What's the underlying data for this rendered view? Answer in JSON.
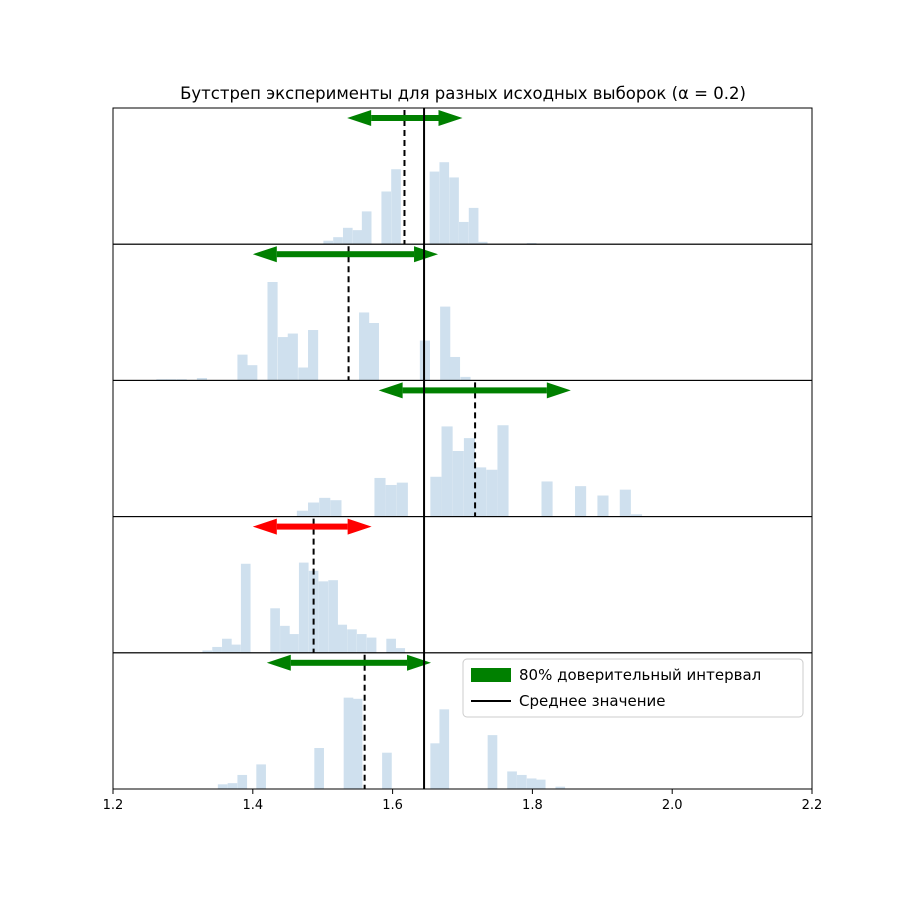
{
  "chart_data": {
    "type": "bar",
    "title": "Бутстреп эксперименты для разных исходных выборок (α = 0.2)",
    "xlim": [
      1.2,
      2.2
    ],
    "x_ticks": [
      1.2,
      1.4,
      1.6,
      1.8,
      2.0,
      2.2
    ],
    "x_tick_labels": [
      "1.2",
      "1.4",
      "1.6",
      "1.8",
      "2.0",
      "2.2"
    ],
    "grid": false,
    "true_mean": 1.645,
    "legend": {
      "position": "lower-right",
      "entries": [
        {
          "label": "80% доверительный интервал",
          "color": "#008000"
        },
        {
          "label": "Среднее значение",
          "color": "#000000"
        }
      ]
    },
    "colors": {
      "hist": "#cfe0ee",
      "interval_ok": "#008000",
      "interval_miss": "#ff0000",
      "true_mean_line": "#000000",
      "sample_mean_line": "#000000"
    },
    "panels": [
      {
        "sample_mean": 1.617,
        "interval": [
          1.535,
          1.7
        ],
        "covers_true_mean": true,
        "hist": {
          "bin_width": 0.0138,
          "ymax": 100,
          "x": [
            1.335,
            1.349,
            1.363,
            1.377,
            1.39,
            1.404,
            1.418,
            1.432,
            1.446,
            1.46,
            1.473,
            1.487,
            1.501,
            1.515,
            1.529,
            1.543,
            1.556,
            1.57,
            1.584,
            1.598,
            1.612,
            1.626,
            1.639,
            1.653,
            1.667,
            1.681,
            1.695,
            1.709,
            1.722,
            1.736,
            1.75,
            1.764,
            1.778,
            1.792,
            1.805
          ],
          "values": [
            0,
            0,
            0,
            0,
            0,
            0,
            0,
            0,
            0,
            0,
            0,
            0,
            3,
            6,
            14,
            12,
            28,
            0,
            45,
            64,
            0,
            0,
            0,
            62,
            70,
            57,
            19,
            31,
            2,
            0,
            0,
            0,
            0,
            1,
            0
          ]
        }
      },
      {
        "sample_mean": 1.537,
        "interval": [
          1.4,
          1.665
        ],
        "covers_true_mean": true,
        "hist": {
          "bin_width": 0.0145,
          "ymax": 100,
          "x": [
            1.262,
            1.276,
            1.291,
            1.305,
            1.32,
            1.334,
            1.349,
            1.363,
            1.378,
            1.392,
            1.407,
            1.421,
            1.436,
            1.45,
            1.465,
            1.479,
            1.494,
            1.508,
            1.523,
            1.537,
            1.552,
            1.566,
            1.581,
            1.595,
            1.61,
            1.624,
            1.639,
            1.653,
            1.668,
            1.682,
            1.697,
            1.711,
            1.726
          ],
          "values": [
            1,
            1,
            1,
            0,
            2,
            0,
            0,
            0,
            22,
            13,
            0,
            84,
            37,
            40,
            11,
            43,
            0,
            0,
            0,
            0,
            58,
            49,
            0,
            0,
            0,
            0,
            34,
            0,
            63,
            20,
            3,
            0,
            0
          ]
        }
      },
      {
        "sample_mean": 1.718,
        "interval": [
          1.58,
          1.855
        ],
        "covers_true_mean": true,
        "hist": {
          "bin_width": 0.0159,
          "ymax": 100,
          "x": [
            1.415,
            1.431,
            1.447,
            1.463,
            1.479,
            1.495,
            1.511,
            1.527,
            1.543,
            1.559,
            1.574,
            1.59,
            1.606,
            1.622,
            1.638,
            1.654,
            1.67,
            1.686,
            1.702,
            1.718,
            1.734,
            1.75,
            1.765,
            1.781,
            1.797,
            1.813,
            1.829,
            1.845,
            1.861,
            1.877,
            1.893,
            1.909,
            1.925,
            1.941,
            1.956
          ],
          "values": [
            0,
            0,
            0,
            5,
            12,
            16,
            14,
            0,
            0,
            0,
            33,
            27,
            29,
            0,
            0,
            34,
            77,
            56,
            67,
            42,
            40,
            78,
            0,
            0,
            0,
            30,
            0,
            0,
            26,
            0,
            18,
            0,
            23,
            2,
            0
          ]
        }
      },
      {
        "sample_mean": 1.487,
        "interval": [
          1.4,
          1.57
        ],
        "covers_true_mean": false,
        "hist": {
          "bin_width": 0.0138,
          "ymax": 100,
          "x": [
            1.328,
            1.342,
            1.356,
            1.369,
            1.383,
            1.397,
            1.411,
            1.425,
            1.439,
            1.452,
            1.466,
            1.48,
            1.494,
            1.508,
            1.521,
            1.535,
            1.549,
            1.563,
            1.577,
            1.591,
            1.604,
            1.618
          ],
          "values": [
            2,
            5,
            12,
            7,
            76,
            0,
            0,
            38,
            23,
            16,
            77,
            70,
            61,
            62,
            24,
            20,
            16,
            13,
            0,
            12,
            4,
            0
          ]
        }
      },
      {
        "sample_mean": 1.56,
        "interval": [
          1.42,
          1.655
        ],
        "covers_true_mean": true,
        "hist": {
          "bin_width": 0.0138,
          "ymax": 100,
          "x": [
            1.35,
            1.364,
            1.378,
            1.391,
            1.405,
            1.419,
            1.433,
            1.447,
            1.46,
            1.474,
            1.488,
            1.502,
            1.516,
            1.53,
            1.543,
            1.557,
            1.571,
            1.585,
            1.598,
            1.612,
            1.626,
            1.64,
            1.654,
            1.667,
            1.681,
            1.695,
            1.709,
            1.723,
            1.736,
            1.75,
            1.764,
            1.778,
            1.792,
            1.805,
            1.819,
            1.833,
            1.847
          ],
          "values": [
            4,
            5,
            12,
            0,
            21,
            0,
            0,
            0,
            0,
            0,
            35,
            0,
            0,
            78,
            77,
            0,
            0,
            31,
            0,
            0,
            0,
            0,
            39,
            68,
            0,
            0,
            0,
            0,
            46,
            0,
            15,
            12,
            9,
            8,
            0,
            2,
            0
          ]
        }
      }
    ]
  }
}
